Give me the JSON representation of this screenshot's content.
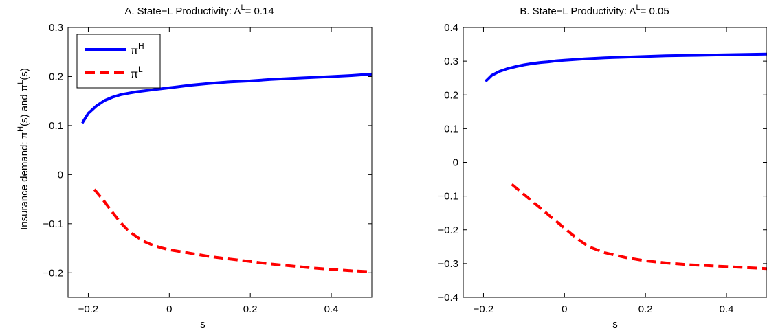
{
  "chart_data": [
    {
      "type": "line",
      "title": "A. State−L Productivity: A",
      "title_sup": "L",
      "title_tail": "= 0.14",
      "xlabel": "s",
      "ylabel": {
        "prefix": "Insurance demand: π",
        "sup1": "H",
        "middle": "(s) and π",
        "sup2": "L",
        "suffix": "(s)"
      },
      "xlim": [
        -0.25,
        0.5
      ],
      "ylim": [
        -0.25,
        0.3
      ],
      "xticks": [
        -0.2,
        0,
        0.2,
        0.4
      ],
      "xtick_labels": [
        "−0.2",
        "0",
        "0.2",
        "0.4"
      ],
      "yticks": [
        -0.2,
        -0.1,
        0,
        0.1,
        0.2,
        0.3
      ],
      "ytick_labels": [
        "−0.2",
        "−0.1",
        "0",
        "0.1",
        "0.2",
        "0.3"
      ],
      "legend": {
        "position": "top-left",
        "entries": [
          {
            "base": "π",
            "sup": "H",
            "series": 0
          },
          {
            "base": "π",
            "sup": "L",
            "series": 1
          }
        ]
      },
      "series": [
        {
          "style": "solid",
          "color": "#0000ff",
          "x": [
            -0.215,
            -0.2,
            -0.18,
            -0.16,
            -0.14,
            -0.12,
            -0.1,
            -0.08,
            -0.06,
            -0.04,
            -0.02,
            0,
            0.05,
            0.1,
            0.15,
            0.2,
            0.25,
            0.3,
            0.35,
            0.4,
            0.45,
            0.5
          ],
          "y": [
            0.105,
            0.125,
            0.14,
            0.151,
            0.158,
            0.163,
            0.166,
            0.169,
            0.171,
            0.173,
            0.175,
            0.177,
            0.182,
            0.186,
            0.189,
            0.191,
            0.194,
            0.196,
            0.198,
            0.2,
            0.202,
            0.205
          ]
        },
        {
          "style": "dashed",
          "color": "#ff0000",
          "x": [
            -0.185,
            -0.16,
            -0.14,
            -0.12,
            -0.1,
            -0.08,
            -0.06,
            -0.04,
            -0.02,
            0,
            0.05,
            0.1,
            0.15,
            0.2,
            0.25,
            0.3,
            0.35,
            0.4,
            0.45,
            0.5
          ],
          "y": [
            -0.03,
            -0.055,
            -0.077,
            -0.098,
            -0.115,
            -0.127,
            -0.137,
            -0.144,
            -0.149,
            -0.153,
            -0.16,
            -0.167,
            -0.172,
            -0.177,
            -0.182,
            -0.186,
            -0.19,
            -0.193,
            -0.196,
            -0.198
          ]
        }
      ]
    },
    {
      "type": "line",
      "title": "B. State−L Productivity: A",
      "title_sup": "L",
      "title_tail": "= 0.05",
      "xlabel": "s",
      "xlim": [
        -0.25,
        0.5
      ],
      "ylim": [
        -0.4,
        0.4
      ],
      "xticks": [
        -0.2,
        0,
        0.2,
        0.4
      ],
      "xtick_labels": [
        "−0.2",
        "0",
        "0.2",
        "0.4"
      ],
      "yticks": [
        -0.4,
        -0.3,
        -0.2,
        -0.1,
        0,
        0.1,
        0.2,
        0.3,
        0.4
      ],
      "ytick_labels": [
        "−0.4",
        "−0.3",
        "−0.2",
        "−0.1",
        "0",
        "0.1",
        "0.2",
        "0.3",
        "0.4"
      ],
      "series": [
        {
          "style": "solid",
          "color": "#0000ff",
          "x": [
            -0.195,
            -0.18,
            -0.16,
            -0.14,
            -0.12,
            -0.1,
            -0.08,
            -0.06,
            -0.04,
            -0.02,
            0,
            0.05,
            0.1,
            0.15,
            0.2,
            0.25,
            0.3,
            0.35,
            0.4,
            0.45,
            0.5
          ],
          "y": [
            0.24,
            0.258,
            0.27,
            0.278,
            0.284,
            0.289,
            0.293,
            0.296,
            0.298,
            0.301,
            0.303,
            0.307,
            0.31,
            0.312,
            0.314,
            0.316,
            0.317,
            0.318,
            0.319,
            0.32,
            0.321
          ]
        },
        {
          "style": "dashed",
          "color": "#ff0000",
          "x": [
            -0.13,
            -0.1,
            -0.06,
            -0.03,
            0,
            0.03,
            0.06,
            0.1,
            0.15,
            0.2,
            0.25,
            0.3,
            0.35,
            0.4,
            0.45,
            0.5
          ],
          "y": [
            -0.065,
            -0.095,
            -0.135,
            -0.165,
            -0.195,
            -0.225,
            -0.25,
            -0.268,
            -0.282,
            -0.292,
            -0.298,
            -0.303,
            -0.306,
            -0.309,
            -0.312,
            -0.315
          ]
        }
      ]
    }
  ]
}
